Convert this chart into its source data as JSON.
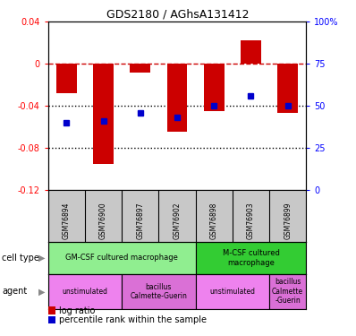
{
  "title": "GDS2180 / AGhsA131412",
  "samples": [
    "GSM76894",
    "GSM76900",
    "GSM76897",
    "GSM76902",
    "GSM76898",
    "GSM76903",
    "GSM76899"
  ],
  "log_ratio": [
    -0.028,
    -0.095,
    -0.008,
    -0.065,
    -0.045,
    0.022,
    -0.047
  ],
  "percentile_rank": [
    40,
    41,
    46,
    43,
    50,
    56,
    50
  ],
  "ylim_left": [
    -0.12,
    0.04
  ],
  "ylim_right": [
    0,
    100
  ],
  "right_ticks": [
    0,
    25,
    50,
    75,
    100
  ],
  "right_tick_labels": [
    "0",
    "25",
    "50",
    "75",
    "100%"
  ],
  "left_ticks": [
    -0.12,
    -0.08,
    -0.04,
    0,
    0.04
  ],
  "left_tick_labels": [
    "-0.12",
    "-0.08",
    "-0.04",
    "0",
    "0.04"
  ],
  "cell_type_groups": [
    {
      "label": "GM-CSF cultured macrophage",
      "start": 0,
      "end": 4,
      "color": "#90EE90"
    },
    {
      "label": "M-CSF cultured\nmacrophage",
      "start": 4,
      "end": 7,
      "color": "#33CC33"
    }
  ],
  "agent_groups": [
    {
      "label": "unstimulated",
      "start": 0,
      "end": 2,
      "color": "#EE82EE"
    },
    {
      "label": "bacillus\nCalmette-Guerin",
      "start": 2,
      "end": 4,
      "color": "#DA70D6"
    },
    {
      "label": "unstimulated",
      "start": 4,
      "end": 6,
      "color": "#EE82EE"
    },
    {
      "label": "bacillus\nCalmette\n-Guerin",
      "start": 6,
      "end": 7,
      "color": "#DA70D6"
    }
  ],
  "bar_color": "#CC0000",
  "dot_color": "#0000CC",
  "dashed_line_color": "#CC0000",
  "dotted_line_color": "#000000",
  "header_bg": "#C8C8C8"
}
